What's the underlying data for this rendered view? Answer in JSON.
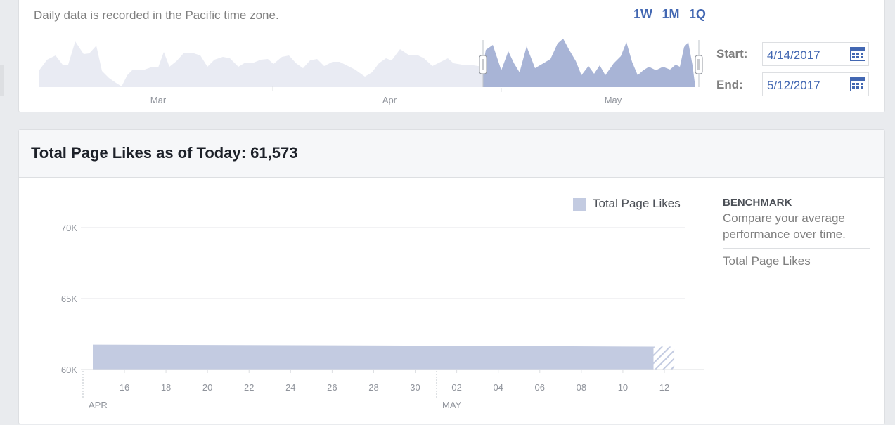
{
  "range_selector": {
    "timezone_note": "Daily data is recorded in the Pacific time zone.",
    "presets": [
      "1W",
      "1M",
      "1Q"
    ],
    "month_labels": [
      "Mar",
      "Apr",
      "May"
    ],
    "start_label": "Start:",
    "start_value": "4/14/2017",
    "end_label": "End:",
    "end_value": "5/12/2017",
    "calendar_icon": "calendar-icon",
    "selection_handle_icon": "drag-handle-icon"
  },
  "likes_panel": {
    "title": "Total Page Likes as of Today: 61,573",
    "legend_label": "Total Page Likes"
  },
  "benchmark": {
    "title": "BENCHMARK",
    "description": "Compare your average performance over time.",
    "item": "Total Page Likes"
  },
  "colors": {
    "accent": "#4267b2",
    "series_fill": "#c3cbe1",
    "mini_unselected": "#e9ebf3",
    "mini_selected": "#a8b4d6"
  },
  "chart_data": {
    "type": "area",
    "title": "",
    "xlabel": "",
    "ylabel": "",
    "ylim": [
      60000,
      70000
    ],
    "y_ticks": [
      "70K",
      "65K",
      "60K"
    ],
    "x_tick_labels": [
      "16",
      "18",
      "20",
      "22",
      "24",
      "26",
      "28",
      "30",
      "02",
      "04",
      "06",
      "08",
      "10",
      "12"
    ],
    "month_labels": [
      "APR",
      "MAY"
    ],
    "legend_position": "top-right",
    "grid": true,
    "series": [
      {
        "name": "Total Page Likes",
        "x": [
          "2017-04-14",
          "2017-04-21",
          "2017-04-28",
          "2017-05-05",
          "2017-05-11"
        ],
        "values": [
          61750,
          61720,
          61690,
          61650,
          61610
        ]
      }
    ],
    "projected_range": [
      "2017-05-11",
      "2017-05-12"
    ]
  }
}
